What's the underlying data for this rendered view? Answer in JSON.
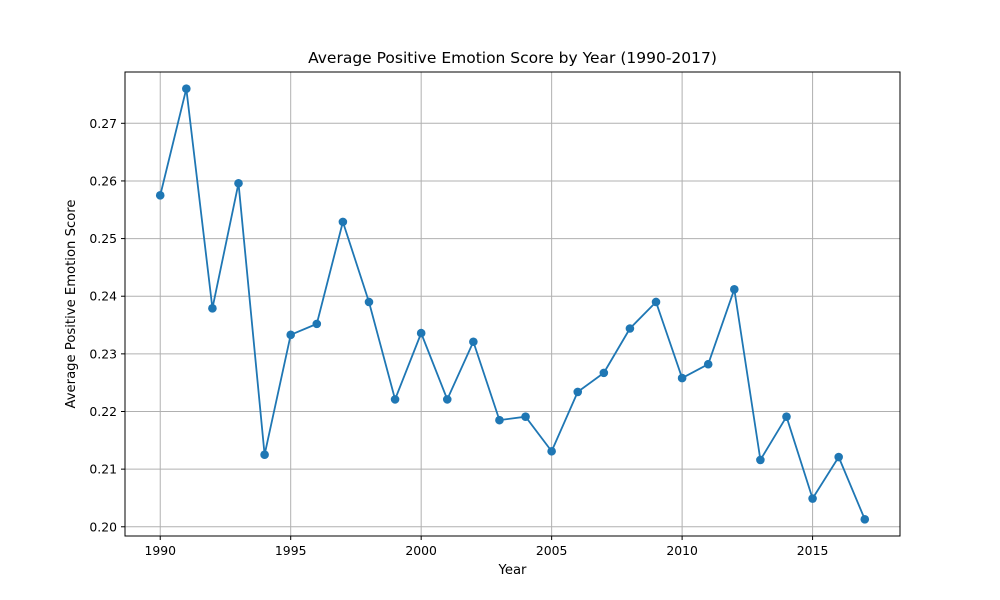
{
  "chart_data": {
    "type": "line",
    "title": "Average Positive Emotion Score by Year (1990-2017)",
    "xlabel": "Year",
    "ylabel": "Average Positive Emotion Score",
    "xlim": [
      1988.65,
      2018.35
    ],
    "ylim": [
      0.1984,
      0.2789
    ],
    "xticks": [
      1990,
      1995,
      2000,
      2005,
      2010,
      2015
    ],
    "yticks": [
      0.2,
      0.21,
      0.22,
      0.23,
      0.24,
      0.25,
      0.26,
      0.27
    ],
    "x_tick_labels": [
      "1990",
      "1995",
      "2000",
      "2005",
      "2010",
      "2015"
    ],
    "y_tick_labels": [
      "0.20",
      "0.21",
      "0.22",
      "0.23",
      "0.24",
      "0.25",
      "0.26",
      "0.27"
    ],
    "grid": true,
    "marker": "circle",
    "color": "#1f77b4",
    "series": [
      {
        "x": [
          1990,
          1991,
          1992,
          1993,
          1994,
          1995,
          1996,
          1997,
          1998,
          1999,
          2000,
          2001,
          2002,
          2003,
          2004,
          2005,
          2006,
          2007,
          2008,
          2009,
          2010,
          2011,
          2012,
          2013,
          2014,
          2015,
          2016,
          2017
        ],
        "values": [
          0.2575,
          0.276,
          0.2379,
          0.2596,
          0.2125,
          0.2333,
          0.2352,
          0.2529,
          0.239,
          0.2221,
          0.2336,
          0.2221,
          0.2321,
          0.2185,
          0.2191,
          0.2131,
          0.2234,
          0.2267,
          0.2344,
          0.239,
          0.2258,
          0.2282,
          0.2412,
          0.2116,
          0.2191,
          0.2049,
          0.2121,
          0.2013
        ]
      }
    ]
  }
}
